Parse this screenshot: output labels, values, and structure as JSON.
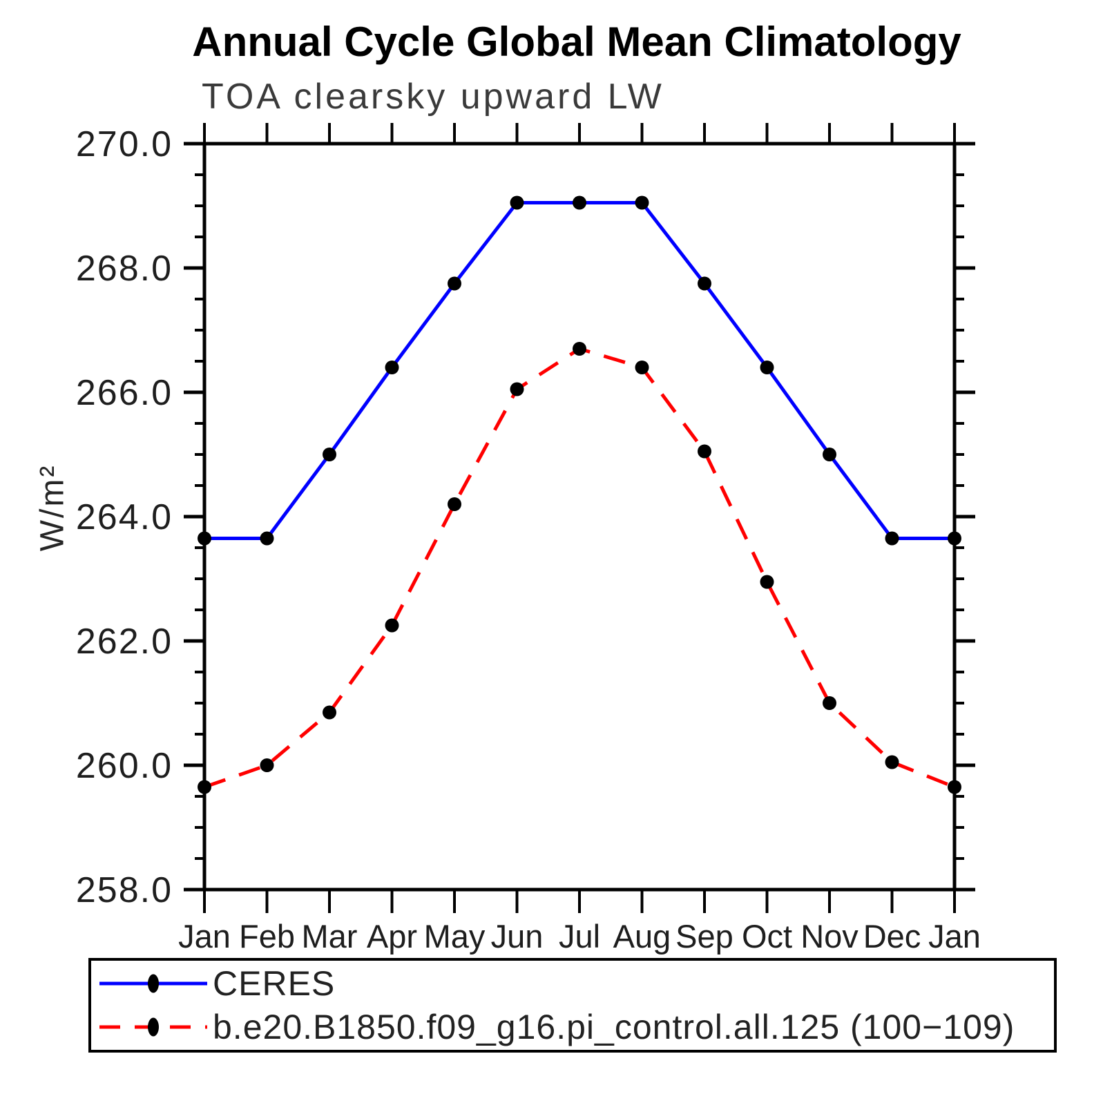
{
  "chart_data": {
    "type": "line",
    "title": "Annual Cycle Global Mean Climatology",
    "subtitle": "TOA clearsky upward LW",
    "ylabel": "W/m²",
    "xlabel": "",
    "x": [
      "Jan",
      "Feb",
      "Mar",
      "Apr",
      "May",
      "Jun",
      "Jul",
      "Aug",
      "Sep",
      "Oct",
      "Nov",
      "Dec",
      "Jan"
    ],
    "ylim": [
      258.0,
      270.0
    ],
    "yticks_major": [
      258,
      260,
      262,
      264,
      266,
      268,
      270
    ],
    "ytick_labels": [
      "258.0",
      "260.0",
      "262.0",
      "264.0",
      "266.0",
      "268.0",
      "270.0"
    ],
    "minor_tick_step": 0.5,
    "grid": false,
    "legend_position": "bottom-left-box",
    "colors": {
      "axis": "#000000",
      "marker": "#000000",
      "ceres": "#0000ff",
      "model": "#ff0000"
    },
    "series": [
      {
        "name": "CERES",
        "color": "#0000ff",
        "line_style": "solid",
        "marker": "filled-circle",
        "marker_color": "#000000",
        "values": [
          263.65,
          263.65,
          265.0,
          266.4,
          267.75,
          269.05,
          269.05,
          269.05,
          267.75,
          266.4,
          265.0,
          263.65,
          263.65
        ]
      },
      {
        "name": "b.e20.B1850.f09_g16.pi_control.all.125 (100−109)",
        "color": "#ff0000",
        "line_style": "dashed",
        "marker": "filled-circle",
        "marker_color": "#000000",
        "values": [
          259.65,
          260.0,
          260.85,
          262.25,
          264.2,
          266.05,
          266.7,
          266.4,
          265.05,
          262.95,
          261.0,
          260.05,
          259.65
        ]
      }
    ]
  }
}
